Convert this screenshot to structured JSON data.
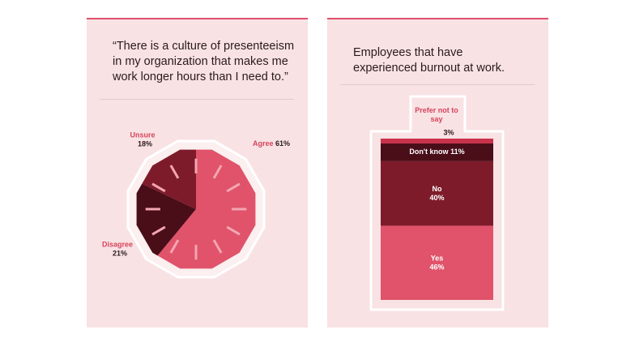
{
  "chart_data": [
    {
      "type": "pie",
      "title": "“There is a culture of presenteeism in my organization that makes me work longer hours than I need to.”",
      "categories": [
        "Agree",
        "Disagree",
        "Unsure"
      ],
      "values": [
        61,
        21,
        18
      ],
      "value_labels": [
        "61%",
        "21%",
        "18%"
      ],
      "colors": [
        "#e0536a",
        "#4a0e19",
        "#7e1b2a"
      ]
    },
    {
      "type": "stacked-bar",
      "title": "Employees that have experienced burnout at work.",
      "categories": [
        "Yes",
        "No",
        "Don't know",
        "Prefer not to say"
      ],
      "values": [
        46,
        40,
        11,
        3
      ],
      "value_labels": [
        "46%",
        "40%",
        "11%",
        "3%"
      ],
      "colors": [
        "#e0536a",
        "#7e1b2a",
        "#4a0e19",
        "#c9324a"
      ]
    }
  ]
}
